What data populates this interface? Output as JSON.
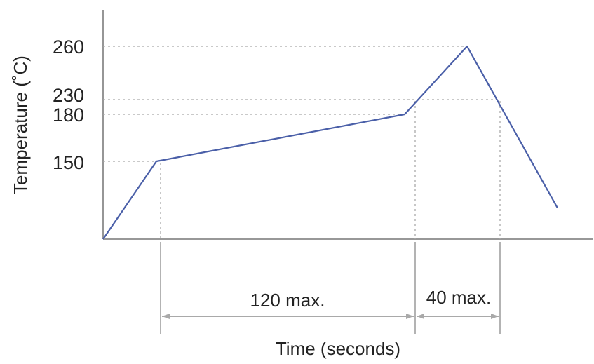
{
  "chart_data": {
    "type": "line",
    "ylabel": "Temperature (˚C)",
    "xlabel": "Time (seconds)",
    "y_ticks": [
      {
        "label": "260",
        "value": 260
      },
      {
        "label": "230",
        "value": 230
      },
      {
        "label": "180",
        "value": 180
      },
      {
        "label": "150",
        "value": 150
      }
    ],
    "series": [
      {
        "points": [
          {
            "t": 0,
            "temp": 100
          },
          {
            "t": 20,
            "temp": 150
          },
          {
            "t": 110,
            "temp": 180
          },
          {
            "t": 130,
            "temp": 260
          },
          {
            "t": 160,
            "temp": 120
          }
        ]
      }
    ],
    "guides": [
      {
        "temp": 150,
        "t": 20
      },
      {
        "temp": 180,
        "t": 110
      },
      {
        "temp": 260,
        "t": 130
      }
    ],
    "dimensions": [
      {
        "label": "120 max.",
        "from_t": 20,
        "to_t": 112
      },
      {
        "label": "40 max.",
        "from_t": 112,
        "to_t": 143
      }
    ],
    "threshold_230": {
      "t_rise": 112,
      "t_fall": 143
    },
    "color": "#4a5fa8"
  }
}
